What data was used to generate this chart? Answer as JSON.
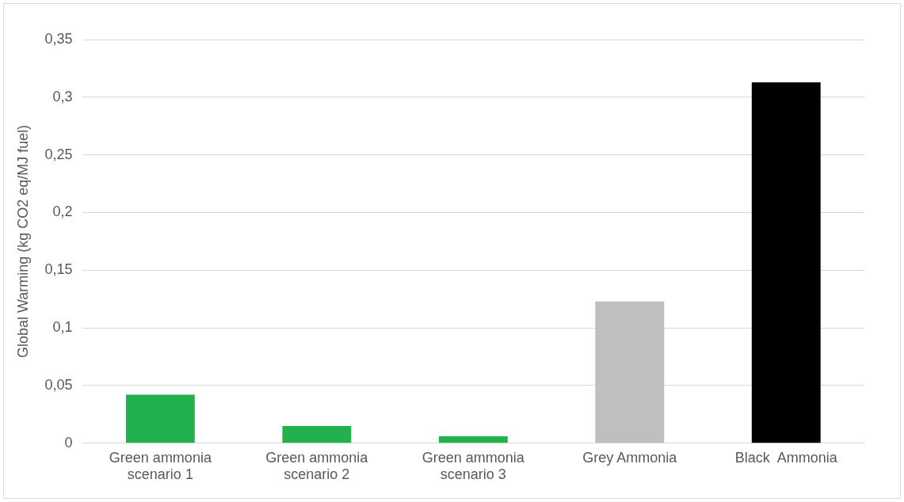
{
  "chart_data": {
    "type": "bar",
    "ylabel": "Global Warming (kg CO2 eq/MJ fuel)",
    "categories": [
      "Green ammonia scenario 1",
      "Green ammonia scenario 2",
      "Green ammonia scenario 3",
      "Grey Ammonia",
      "Black  Ammonia"
    ],
    "values": [
      0.042,
      0.015,
      0.006,
      0.123,
      0.313
    ],
    "colors": [
      "#22b14c",
      "#22b14c",
      "#22b14c",
      "#bfbfbf",
      "#000000"
    ],
    "ylim": [
      0,
      0.35
    ],
    "yticks": [
      0,
      {
        "value": 0.05,
        "label": "0,05"
      },
      {
        "value": 0.1,
        "label": "0,1"
      },
      {
        "value": 0.15,
        "label": "0,15"
      },
      {
        "value": 0.2,
        "label": "0,2"
      },
      {
        "value": 0.25,
        "label": "0,25"
      },
      {
        "value": 0.3,
        "label": "0,3"
      },
      {
        "value": 0.35,
        "label": "0,35"
      }
    ],
    "grid": "y",
    "legend": false
  }
}
